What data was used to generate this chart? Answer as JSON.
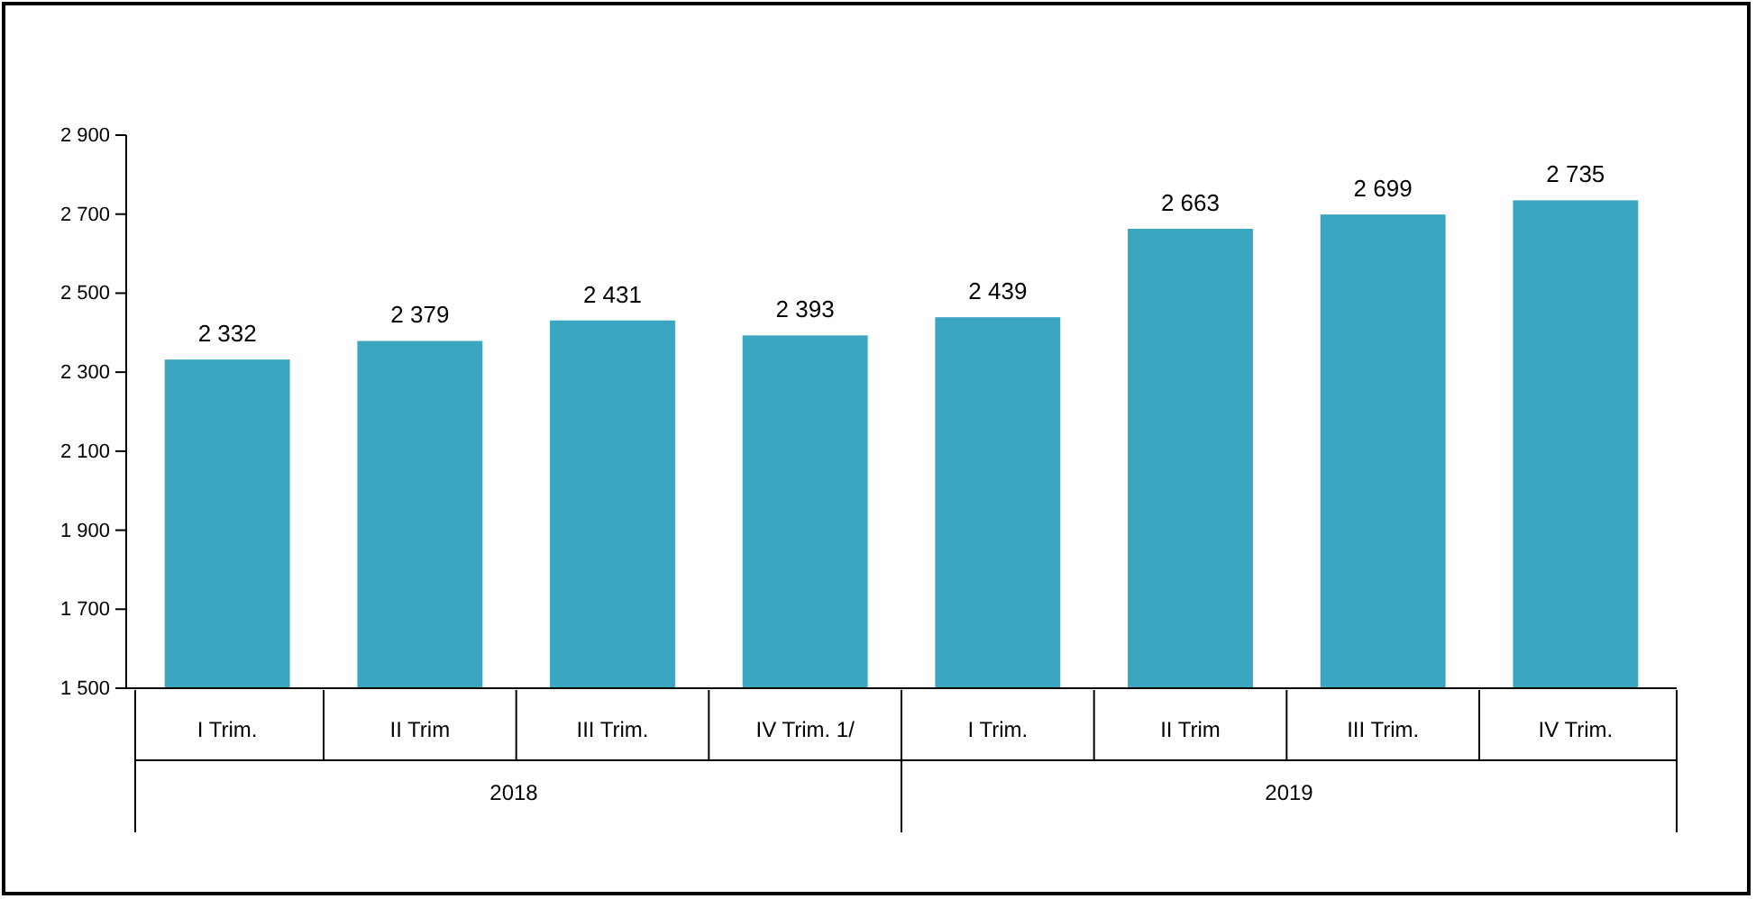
{
  "chart_data": {
    "type": "bar",
    "categories": [
      "I Trim.",
      "II Trim",
      "III Trim.",
      "IV Trim. 1/",
      "I Trim.",
      "II Trim",
      "III Trim.",
      "IV Trim."
    ],
    "values": [
      2332,
      2379,
      2431,
      2393,
      2439,
      2663,
      2699,
      2735
    ],
    "value_labels": [
      "2 332",
      "2 379",
      "2 431",
      "2 393",
      "2 439",
      "2 663",
      "2 699",
      "2 735"
    ],
    "color": "#3aa6c0",
    "ylim": [
      1500,
      2900
    ],
    "yticks": [
      {
        "value": 1500,
        "label": "1 500"
      },
      {
        "value": 1700,
        "label": "1 700"
      },
      {
        "value": 1900,
        "label": "1 900"
      },
      {
        "value": 2100,
        "label": "2 100"
      },
      {
        "value": 2300,
        "label": "2 300"
      },
      {
        "value": 2500,
        "label": "2 500"
      },
      {
        "value": 2700,
        "label": "2 700"
      },
      {
        "value": 2900,
        "label": "2 900"
      }
    ],
    "annotations": [
      "2018",
      "2019"
    ]
  }
}
